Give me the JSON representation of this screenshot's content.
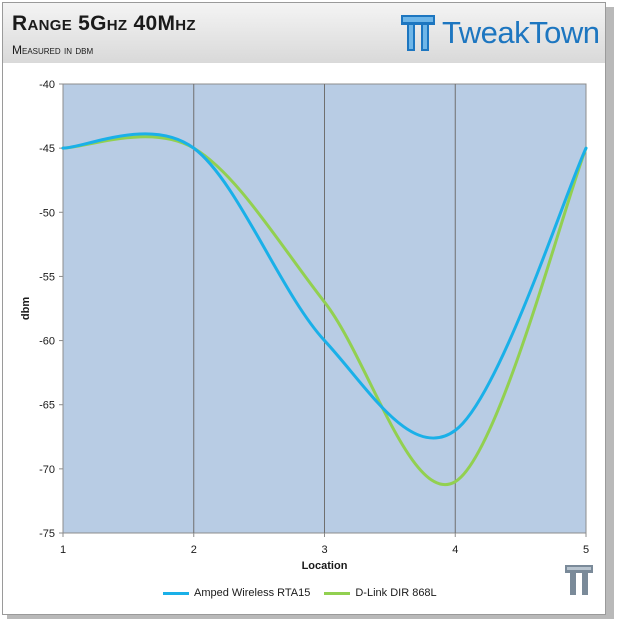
{
  "header": {
    "title": "Range 5Ghz 40Mhz",
    "subtitle": "Measured in dbm",
    "logo_text": "TweakTown",
    "logo_color": "#1d76c0"
  },
  "chart_data": {
    "type": "line",
    "title": "Range 5Ghz 40Mhz",
    "subtitle": "Measured in dbm",
    "xlabel": "Location",
    "ylabel": "dbm",
    "x": [
      1,
      2,
      3,
      4,
      5
    ],
    "xlim": [
      1,
      5
    ],
    "ylim": [
      -75,
      -40
    ],
    "y_ticks": [
      -40,
      -45,
      -50,
      -55,
      -60,
      -65,
      -70,
      -75
    ],
    "x_ticks": [
      1,
      2,
      3,
      4,
      5
    ],
    "plot_background": "#b8cce4",
    "grid": "vertical",
    "smooth": true,
    "series": [
      {
        "name": "Amped Wireless RTA15",
        "color": "#1ab0e8",
        "values": [
          -45,
          -45,
          -60,
          -67,
          -45
        ]
      },
      {
        "name": "D-Link DIR 868L",
        "color": "#92d050",
        "values": [
          -45,
          -45,
          -57,
          -71,
          -45
        ]
      }
    ],
    "legend_position": "bottom"
  }
}
